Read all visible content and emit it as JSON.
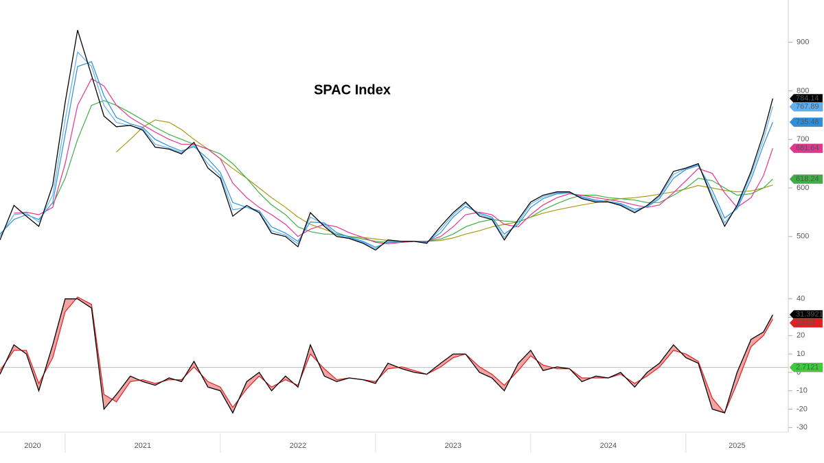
{
  "chart_data": [
    {
      "type": "line",
      "title": "SPAC Index",
      "x": [
        2020.58,
        2020.67,
        2020.75,
        2020.83,
        2020.92,
        2021.0,
        2021.08,
        2021.17,
        2021.25,
        2021.33,
        2021.42,
        2021.5,
        2021.58,
        2021.67,
        2021.75,
        2021.83,
        2021.92,
        2022.0,
        2022.08,
        2022.17,
        2022.25,
        2022.33,
        2022.42,
        2022.5,
        2022.58,
        2022.67,
        2022.75,
        2022.83,
        2022.92,
        2023.0,
        2023.08,
        2023.17,
        2023.25,
        2023.33,
        2023.42,
        2023.5,
        2023.58,
        2023.67,
        2023.75,
        2023.83,
        2023.92,
        2024.0,
        2024.08,
        2024.17,
        2024.25,
        2024.33,
        2024.42,
        2024.5,
        2024.58,
        2024.67,
        2024.75,
        2024.83,
        2024.92,
        2025.0,
        2025.08,
        2025.17,
        2025.25,
        2025.33,
        2025.42,
        2025.5,
        2025.56
      ],
      "xlim": [
        2020.58,
        2025.66
      ],
      "ylim": [
        415,
        987
      ],
      "yticks": [
        500,
        600,
        700,
        800,
        900
      ],
      "series": [
        {
          "color": "#000000",
          "values": [
            493,
            564,
            542,
            521,
            606,
            776,
            925,
            832,
            748,
            726,
            729,
            719,
            684,
            680,
            670,
            694,
            641,
            620,
            542,
            564,
            549,
            507,
            500,
            479,
            549,
            521,
            500,
            496,
            486,
            472,
            493,
            490,
            490,
            486,
            521,
            549,
            571,
            542,
            535,
            493,
            535,
            571,
            585,
            592,
            592,
            578,
            571,
            571,
            564,
            549,
            564,
            585,
            634,
            641,
            650,
            578,
            521,
            564,
            634,
            712,
            784.14
          ]
        },
        {
          "color": "#5fb0f0",
          "values": [
            500,
            545,
            548,
            530,
            585,
            740,
            880,
            850,
            770,
            735,
            728,
            722,
            690,
            682,
            673,
            688,
            650,
            625,
            555,
            560,
            550,
            512,
            503,
            485,
            540,
            525,
            503,
            497,
            488,
            475,
            490,
            490,
            490,
            487,
            515,
            545,
            568,
            545,
            537,
            498,
            530,
            567,
            582,
            590,
            591,
            580,
            573,
            571,
            566,
            552,
            562,
            582,
            628,
            640,
            648,
            585,
            528,
            560,
            628,
            700,
            767.89
          ]
        },
        {
          "color": "#2a8fdf",
          "values": [
            505,
            535,
            545,
            535,
            570,
            710,
            850,
            860,
            790,
            745,
            732,
            725,
            700,
            686,
            676,
            685,
            660,
            632,
            570,
            560,
            553,
            520,
            507,
            490,
            530,
            528,
            508,
            499,
            490,
            478,
            488,
            490,
            490,
            488,
            508,
            540,
            562,
            548,
            540,
            505,
            525,
            560,
            578,
            588,
            590,
            582,
            575,
            572,
            568,
            556,
            561,
            578,
            620,
            638,
            646,
            595,
            538,
            557,
            618,
            688,
            735.48
          ]
        },
        {
          "color": "#e6338f",
          "values": [
            null,
            548,
            550,
            545,
            560,
            650,
            770,
            825,
            810,
            770,
            745,
            730,
            715,
            700,
            690,
            690,
            680,
            660,
            610,
            580,
            560,
            545,
            525,
            500,
            515,
            525,
            520,
            508,
            498,
            488,
            485,
            488,
            490,
            490,
            500,
            520,
            545,
            550,
            545,
            525,
            520,
            545,
            565,
            580,
            588,
            585,
            580,
            576,
            572,
            565,
            560,
            565,
            590,
            615,
            640,
            630,
            590,
            560,
            580,
            625,
            681.64
          ]
        },
        {
          "color": "#3cb043",
          "values": [
            null,
            null,
            null,
            null,
            566,
            620,
            700,
            770,
            780,
            770,
            755,
            740,
            725,
            710,
            700,
            690,
            680,
            670,
            650,
            620,
            590,
            565,
            545,
            520,
            510,
            505,
            505,
            500,
            495,
            490,
            488,
            488,
            490,
            490,
            495,
            505,
            520,
            530,
            535,
            532,
            530,
            540,
            555,
            568,
            578,
            585,
            585,
            580,
            578,
            575,
            570,
            570,
            585,
            600,
            620,
            615,
            600,
            585,
            588,
            600,
            618.24
          ]
        },
        {
          "color": "#a89a10",
          "values": [
            null,
            null,
            null,
            null,
            null,
            null,
            null,
            null,
            null,
            674,
            700,
            725,
            740,
            735,
            720,
            700,
            680,
            660,
            640,
            620,
            600,
            580,
            560,
            540,
            525,
            515,
            505,
            500,
            498,
            495,
            492,
            490,
            490,
            490,
            492,
            497,
            505,
            512,
            520,
            525,
            530,
            540,
            548,
            555,
            560,
            565,
            570,
            575,
            578,
            580,
            583,
            587,
            592,
            598,
            605,
            600,
            595,
            592,
            594,
            600,
            606
          ]
        }
      ],
      "tags": [
        0,
        1,
        2,
        3,
        4
      ]
    },
    {
      "type": "line",
      "x": [
        2020.58,
        2020.67,
        2020.75,
        2020.83,
        2020.92,
        2021.0,
        2021.08,
        2021.17,
        2021.25,
        2021.33,
        2021.42,
        2021.5,
        2021.58,
        2021.67,
        2021.75,
        2021.83,
        2021.92,
        2022.0,
        2022.08,
        2022.17,
        2022.25,
        2022.33,
        2022.42,
        2022.5,
        2022.58,
        2022.67,
        2022.75,
        2022.83,
        2022.92,
        2023.0,
        2023.08,
        2023.17,
        2023.25,
        2023.33,
        2023.42,
        2023.5,
        2023.58,
        2023.67,
        2023.75,
        2023.83,
        2023.92,
        2024.0,
        2024.08,
        2024.17,
        2024.25,
        2024.33,
        2024.42,
        2024.5,
        2024.58,
        2024.67,
        2024.75,
        2024.83,
        2024.92,
        2025.0,
        2025.08,
        2025.17,
        2025.25,
        2025.33,
        2025.42,
        2025.5,
        2025.56
      ],
      "xlim": [
        2020.58,
        2025.66
      ],
      "ylim": [
        -32.5,
        49.6
      ],
      "yticks": [
        -30,
        -20,
        -10,
        0,
        10,
        20,
        30,
        40
      ],
      "xticks": [
        {
          "value": 2020.79,
          "label": "2020"
        },
        {
          "value": 2021.5,
          "label": "2021"
        },
        {
          "value": 2022.5,
          "label": "2022"
        },
        {
          "value": 2023.5,
          "label": "2023"
        },
        {
          "value": 2024.5,
          "label": "2024"
        },
        {
          "value": 2025.33,
          "label": "2025"
        }
      ],
      "xseparators": [
        2021,
        2022,
        2023,
        2024,
        2025
      ],
      "fill_color": "#f2a3a3",
      "series": [
        {
          "color": "#000000",
          "values": [
            -1,
            15,
            10,
            -10,
            15,
            40,
            40,
            35,
            -20,
            -12,
            -2,
            -5,
            -7,
            -3,
            -5,
            6,
            -8,
            -10,
            -22,
            -5,
            0,
            -10,
            -2,
            -8,
            15,
            -2,
            -5,
            -3,
            -4,
            -6,
            5,
            2,
            0,
            -1,
            5,
            10,
            10,
            0,
            -3,
            -10,
            5,
            12,
            1,
            3,
            2,
            -5,
            -2,
            -3,
            0,
            -8,
            0,
            5,
            15,
            8,
            5,
            -20,
            -22,
            0,
            18,
            22,
            31.3921
          ]
        },
        {
          "color": "#e02020",
          "values": [
            1,
            12,
            12,
            -6,
            8,
            33,
            41,
            37,
            -12,
            -16,
            -5,
            -4,
            -6,
            -4,
            -4,
            3,
            -5,
            -8,
            -19,
            -9,
            -2,
            -8,
            -4,
            -7,
            10,
            2,
            -4,
            -3,
            -4,
            -5,
            2,
            3,
            1,
            -1,
            3,
            8,
            10,
            3,
            -1,
            -7,
            1,
            9,
            4,
            2,
            2,
            -3,
            -3,
            -3,
            -1,
            -6,
            -2,
            3,
            12,
            10,
            6,
            -14,
            -22,
            -6,
            14,
            20,
            28.88
          ]
        }
      ],
      "reference_line": {
        "value": 2.7121,
        "color": "#3ccc3c",
        "line_color": "#bbbbbb"
      },
      "tags": [
        0,
        1
      ]
    }
  ]
}
